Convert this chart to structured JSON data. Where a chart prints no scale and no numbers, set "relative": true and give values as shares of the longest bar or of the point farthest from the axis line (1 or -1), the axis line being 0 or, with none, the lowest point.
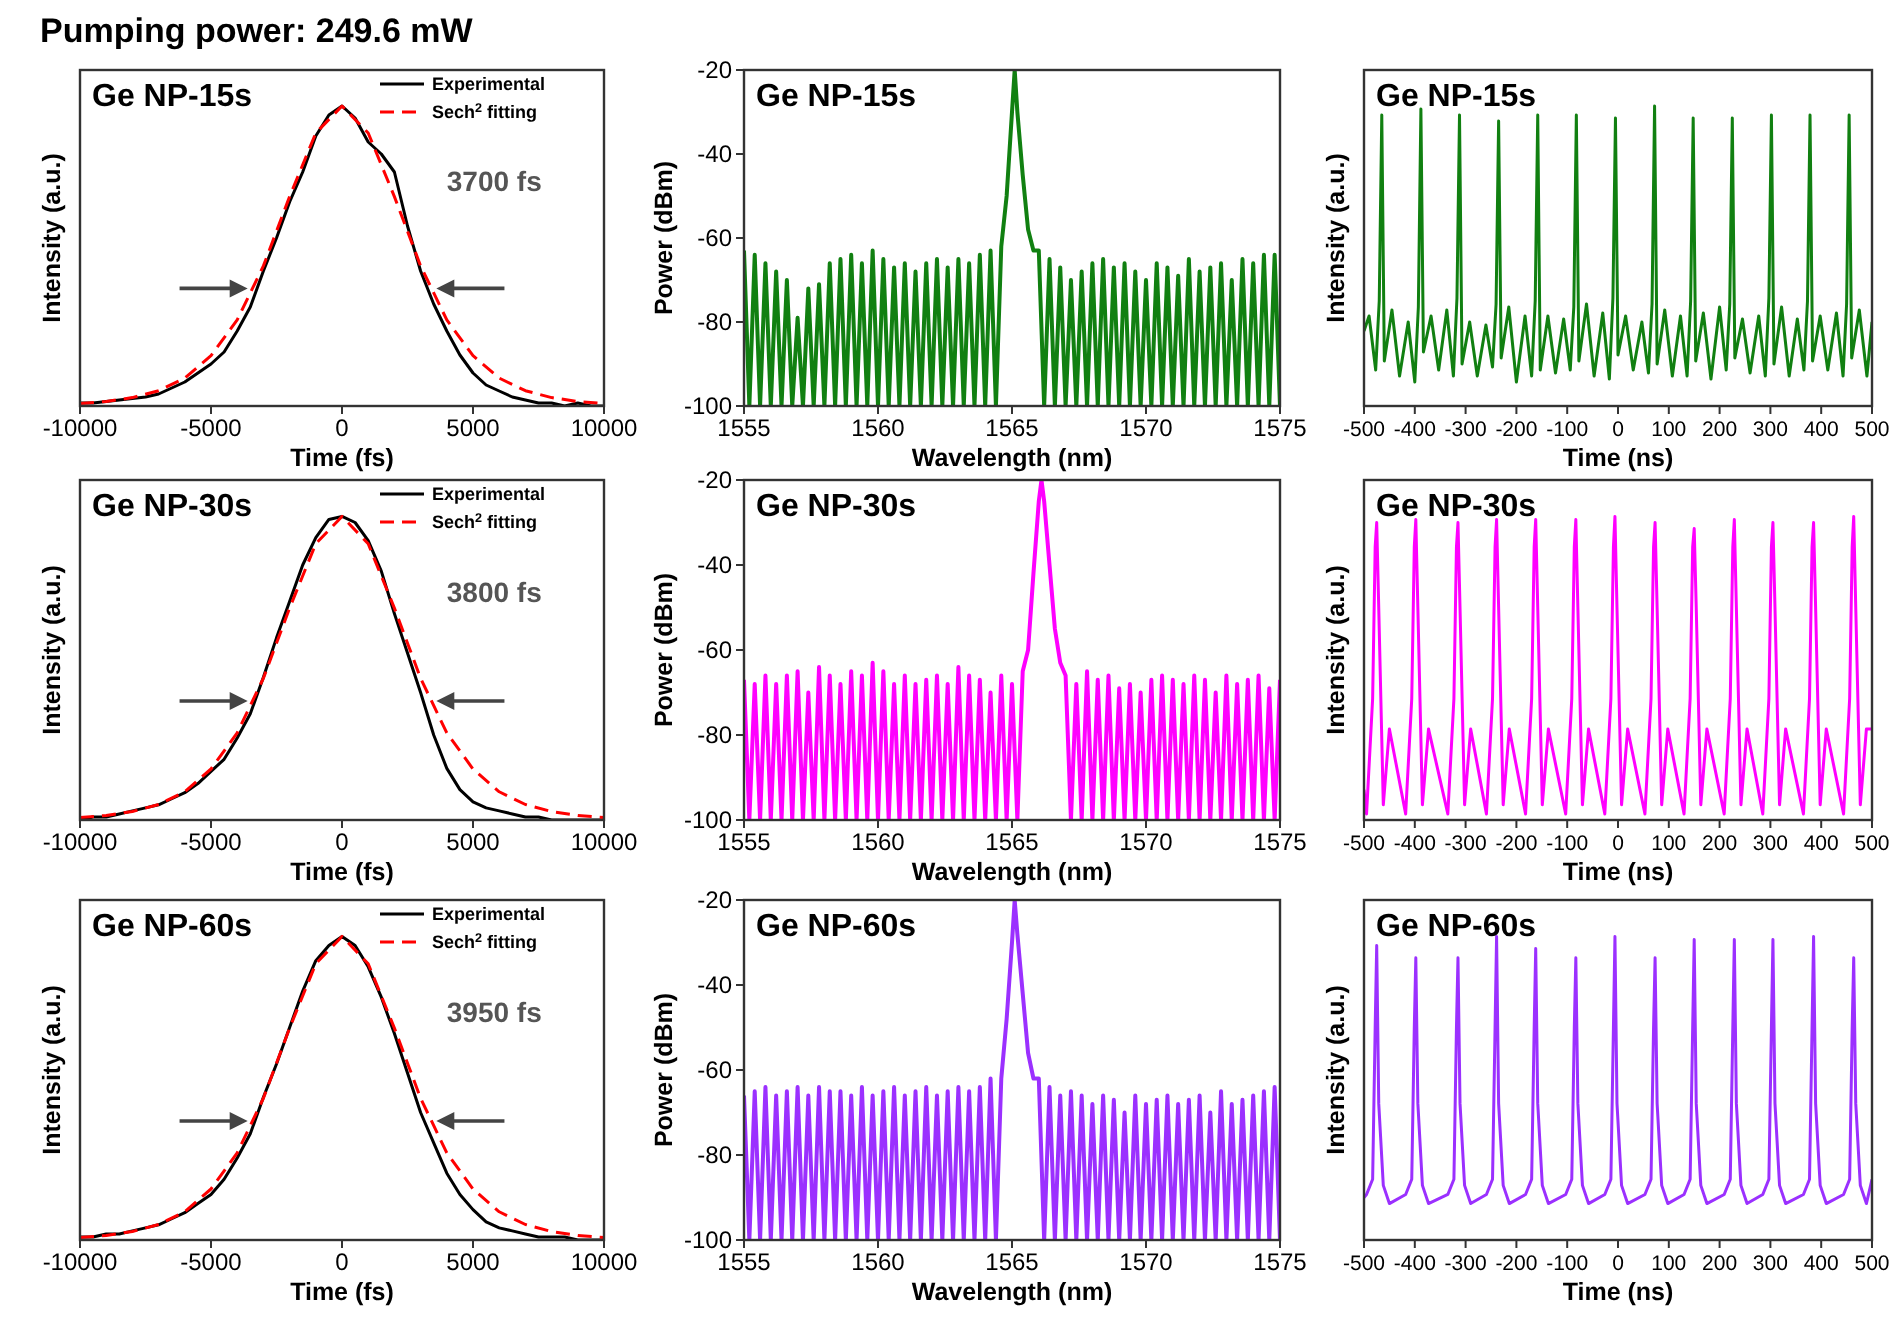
{
  "chart_data": [
    {
      "type": "line",
      "title": "Pumping power: 249.6 mW",
      "xlabel": "Time (fs)",
      "ylabel": "Intensity (a.u.)",
      "relative": true,
      "tick_labels": "x",
      "legend": "top right",
      "annotations": [
        "Ge NP-15s",
        "3700 fs"
      ],
      "xlim": [
        -10000,
        10000
      ],
      "xticks": [
        -10000,
        -5000,
        0,
        5000,
        10000
      ],
      "series": [
        {
          "name": "Experimental",
          "color": "#000000",
          "line_style": "solid",
          "x": [
            -10000,
            -9500,
            -9000,
            -8500,
            -8000,
            -7500,
            -7000,
            -6500,
            -6000,
            -5500,
            -5000,
            -4500,
            -4000,
            -3500,
            -3000,
            -2500,
            -2000,
            -1500,
            -1000,
            -500,
            0,
            500,
            1000,
            1500,
            2000,
            2500,
            3000,
            3500,
            4000,
            4500,
            5000,
            5500,
            6000,
            6500,
            7000,
            7500,
            8000,
            8500,
            9000,
            9500,
            10000
          ],
          "values": [
            0.01,
            0.01,
            0.015,
            0.02,
            0.025,
            0.03,
            0.04,
            0.06,
            0.08,
            0.11,
            0.14,
            0.18,
            0.25,
            0.33,
            0.45,
            0.56,
            0.68,
            0.78,
            0.9,
            0.97,
            1,
            0.96,
            0.88,
            0.84,
            0.78,
            0.6,
            0.45,
            0.34,
            0.25,
            0.17,
            0.11,
            0.07,
            0.05,
            0.03,
            0.02,
            0.01,
            0.01,
            0,
            0.01,
            0,
            0
          ]
        },
        {
          "name": "Sech$^{2}$ fitting",
          "color": "#ff0000",
          "line_style": "dashed",
          "x": [
            -10000,
            -9000,
            -8000,
            -7000,
            -6000,
            -5000,
            -4000,
            -3000,
            -2000,
            -1000,
            0,
            1000,
            2000,
            3000,
            4000,
            5000,
            6000,
            7000,
            8000,
            9000,
            10000
          ],
          "values": [
            0.008,
            0.015,
            0.028,
            0.051,
            0.093,
            0.168,
            0.287,
            0.467,
            0.698,
            0.91,
            1,
            0.91,
            0.698,
            0.467,
            0.287,
            0.168,
            0.093,
            0.051,
            0.028,
            0.015,
            0.008
          ]
        }
      ]
    },
    {
      "type": "line",
      "xlabel": "Wavelength (nm)",
      "ylabel": "Power (dBm)",
      "annotations": [
        "Ge NP-15s"
      ],
      "xlim": [
        1555,
        1575
      ],
      "xticks": [
        1555,
        1560,
        1565,
        1570,
        1575
      ],
      "ylim": [
        -100,
        -20
      ],
      "yticks": [
        -100,
        -80,
        -60,
        -40,
        -20
      ],
      "series": [
        {
          "color": "#118011",
          "x": [
            1555,
            1555.2,
            1555.4,
            1555.6,
            1555.8,
            1556,
            1556.2,
            1556.4,
            1556.6,
            1556.8,
            1557,
            1557.2,
            1557.4,
            1557.6,
            1557.8,
            1558,
            1558.2,
            1558.4,
            1558.6,
            1558.8,
            1559,
            1559.2,
            1559.4,
            1559.6,
            1559.8,
            1560,
            1560.2,
            1560.4,
            1560.6,
            1560.8,
            1561,
            1561.2,
            1561.4,
            1561.6,
            1561.8,
            1562,
            1562.2,
            1562.4,
            1562.6,
            1562.8,
            1563,
            1563.2,
            1563.4,
            1563.6,
            1563.8,
            1564,
            1564.2,
            1564.4,
            1564.6,
            1564.8,
            1565,
            1565.1,
            1565.2,
            1565.4,
            1565.6,
            1565.8,
            1566,
            1566.2,
            1566.4,
            1566.6,
            1566.8,
            1567,
            1567.2,
            1567.4,
            1567.6,
            1567.8,
            1568,
            1568.2,
            1568.4,
            1568.6,
            1568.8,
            1569,
            1569.2,
            1569.4,
            1569.6,
            1569.8,
            1570,
            1570.2,
            1570.4,
            1570.6,
            1570.8,
            1571,
            1571.2,
            1571.4,
            1571.6,
            1571.8,
            1572,
            1572.2,
            1572.4,
            1572.6,
            1572.8,
            1573,
            1573.2,
            1573.4,
            1573.6,
            1573.8,
            1574,
            1574.2,
            1574.4,
            1574.6,
            1574.8,
            1575
          ],
          "values": [
            -63,
            -100,
            -64,
            -100,
            -66,
            -100,
            -68,
            -100,
            -70,
            -100,
            -79,
            -100,
            -72,
            -100,
            -71,
            -100,
            -66,
            -100,
            -65,
            -100,
            -64,
            -100,
            -66,
            -100,
            -63,
            -100,
            -65,
            -100,
            -67,
            -100,
            -66,
            -100,
            -68,
            -100,
            -66,
            -100,
            -65,
            -100,
            -67,
            -100,
            -65,
            -100,
            -66,
            -100,
            -64,
            -100,
            -63,
            -100,
            -62,
            -50,
            -30,
            -20,
            -30,
            -45,
            -58,
            -63,
            -63,
            -100,
            -65,
            -100,
            -67,
            -100,
            -70,
            -100,
            -68,
            -100,
            -66,
            -100,
            -65,
            -100,
            -67,
            -100,
            -66,
            -100,
            -68,
            -100,
            -70,
            -100,
            -66,
            -100,
            -67,
            -100,
            -69,
            -100,
            -65,
            -100,
            -68,
            -100,
            -67,
            -100,
            -66,
            -100,
            -70,
            -100,
            -65,
            -100,
            -66,
            -100,
            -64,
            -100,
            -64,
            -100
          ]
        }
      ]
    },
    {
      "type": "line",
      "xlabel": "Time (ns)",
      "ylabel": "Intensity (a.u.)",
      "relative": true,
      "tick_labels": "x",
      "annotations": [
        "Ge NP-15s"
      ],
      "xlim": [
        -500,
        500
      ],
      "xticks": [
        -500,
        -400,
        -300,
        -200,
        -100,
        0,
        100,
        200,
        300,
        400,
        500
      ],
      "series": [
        {
          "color": "#118011",
          "x": [
            -500,
            -490,
            -477,
            -470,
            -465,
            -460,
            -445,
            -430,
            -413,
            -400,
            -393,
            -388,
            -383,
            -368,
            -353,
            -337,
            -324,
            -317,
            -312,
            -307,
            -292,
            -277,
            -260,
            -247,
            -240,
            -235,
            -230,
            -215,
            -200,
            -183,
            -170,
            -163,
            -158,
            -153,
            -138,
            -123,
            -107,
            -94,
            -87,
            -82,
            -77,
            -62,
            -47,
            -30,
            -17,
            -10,
            -5,
            0,
            15,
            30,
            47,
            60,
            67,
            72,
            77,
            92,
            107,
            123,
            136,
            143,
            148,
            153,
            168,
            183,
            200,
            213,
            220,
            225,
            230,
            245,
            260,
            277,
            290,
            297,
            302,
            307,
            322,
            337,
            353,
            366,
            373,
            378,
            383,
            398,
            413,
            430,
            443,
            450,
            455,
            460,
            475,
            490,
            500
          ],
          "values": [
            0.25,
            0.3,
            0.12,
            0.35,
            0.97,
            0.15,
            0.32,
            0.1,
            0.28,
            0.08,
            0.33,
            0.99,
            0.18,
            0.3,
            0.12,
            0.32,
            0.1,
            0.36,
            0.97,
            0.14,
            0.28,
            0.1,
            0.27,
            0.13,
            0.34,
            0.95,
            0.16,
            0.33,
            0.08,
            0.3,
            0.1,
            0.35,
            0.97,
            0.12,
            0.3,
            0.11,
            0.29,
            0.12,
            0.33,
            0.97,
            0.15,
            0.34,
            0.1,
            0.31,
            0.09,
            0.36,
            0.96,
            0.17,
            0.3,
            0.12,
            0.28,
            0.11,
            0.34,
            1,
            0.14,
            0.32,
            0.1,
            0.3,
            0.1,
            0.35,
            0.96,
            0.15,
            0.31,
            0.09,
            0.33,
            0.12,
            0.34,
            0.96,
            0.16,
            0.29,
            0.11,
            0.3,
            0.1,
            0.36,
            0.97,
            0.14,
            0.33,
            0.1,
            0.29,
            0.12,
            0.35,
            0.97,
            0.15,
            0.3,
            0.12,
            0.31,
            0.1,
            0.34,
            0.97,
            0.16,
            0.32,
            0.1,
            0.28
          ]
        }
      ]
    },
    {
      "type": "line",
      "xlabel": "Time (fs)",
      "ylabel": "Intensity (a.u.)",
      "relative": true,
      "tick_labels": "x",
      "legend": "top right",
      "annotations": [
        "Ge NP-30s",
        "3800 fs"
      ],
      "xlim": [
        -10000,
        10000
      ],
      "xticks": [
        -10000,
        -5000,
        0,
        5000,
        10000
      ],
      "series": [
        {
          "name": "Experimental",
          "color": "#000000",
          "line_style": "solid",
          "x": [
            -10000,
            -9500,
            -9000,
            -8500,
            -8000,
            -7500,
            -7000,
            -6500,
            -6000,
            -5500,
            -5000,
            -4500,
            -4000,
            -3500,
            -3000,
            -2500,
            -2000,
            -1500,
            -1000,
            -500,
            0,
            500,
            1000,
            1500,
            2000,
            2500,
            3000,
            3500,
            4000,
            4500,
            5000,
            5500,
            6000,
            6500,
            7000,
            7500,
            8000,
            8500,
            9000,
            9500,
            10000
          ],
          "values": [
            0,
            0.01,
            0.01,
            0.02,
            0.03,
            0.04,
            0.05,
            0.07,
            0.09,
            0.12,
            0.16,
            0.2,
            0.27,
            0.35,
            0.47,
            0.6,
            0.72,
            0.84,
            0.93,
            0.99,
            1,
            0.98,
            0.92,
            0.82,
            0.68,
            0.55,
            0.42,
            0.28,
            0.17,
            0.1,
            0.06,
            0.04,
            0.03,
            0.02,
            0.01,
            0.01,
            0,
            0,
            0,
            0,
            0
          ]
        },
        {
          "name": "Sech$^{2}$ fitting",
          "color": "#ff0000",
          "line_style": "dashed",
          "x": [
            -10000,
            -9000,
            -8000,
            -7000,
            -6000,
            -5000,
            -4000,
            -3000,
            -2000,
            -1000,
            0,
            1000,
            2000,
            3000,
            4000,
            5000,
            6000,
            7000,
            8000,
            9000,
            10000
          ],
          "values": [
            0.008,
            0.015,
            0.028,
            0.051,
            0.093,
            0.168,
            0.287,
            0.467,
            0.698,
            0.91,
            1,
            0.91,
            0.698,
            0.467,
            0.287,
            0.168,
            0.093,
            0.051,
            0.028,
            0.015,
            0.008
          ]
        }
      ]
    },
    {
      "type": "line",
      "xlabel": "Wavelength (nm)",
      "ylabel": "Power (dBm)",
      "annotations": [
        "Ge NP-30s"
      ],
      "xlim": [
        1555,
        1575
      ],
      "xticks": [
        1555,
        1560,
        1565,
        1570,
        1575
      ],
      "ylim": [
        -100,
        -20
      ],
      "yticks": [
        -100,
        -80,
        -60,
        -40,
        -20
      ],
      "series": [
        {
          "color": "#ff00ff",
          "x": [
            1555,
            1555.2,
            1555.4,
            1555.6,
            1555.8,
            1556,
            1556.2,
            1556.4,
            1556.6,
            1556.8,
            1557,
            1557.2,
            1557.4,
            1557.6,
            1557.8,
            1558,
            1558.2,
            1558.4,
            1558.6,
            1558.8,
            1559,
            1559.2,
            1559.4,
            1559.6,
            1559.8,
            1560,
            1560.2,
            1560.4,
            1560.6,
            1560.8,
            1561,
            1561.2,
            1561.4,
            1561.6,
            1561.8,
            1562,
            1562.2,
            1562.4,
            1562.6,
            1562.8,
            1563,
            1563.2,
            1563.4,
            1563.6,
            1563.8,
            1564,
            1564.2,
            1564.4,
            1564.6,
            1564.8,
            1565,
            1565.2,
            1565.4,
            1565.6,
            1565.8,
            1566,
            1566.1,
            1566.2,
            1566.4,
            1566.6,
            1566.8,
            1567,
            1567.2,
            1567.4,
            1567.6,
            1567.8,
            1568,
            1568.2,
            1568.4,
            1568.6,
            1568.8,
            1569,
            1569.2,
            1569.4,
            1569.6,
            1569.8,
            1570,
            1570.2,
            1570.4,
            1570.6,
            1570.8,
            1571,
            1571.2,
            1571.4,
            1571.6,
            1571.8,
            1572,
            1572.2,
            1572.4,
            1572.6,
            1572.8,
            1573,
            1573.2,
            1573.4,
            1573.6,
            1573.8,
            1574,
            1574.2,
            1574.4,
            1574.6,
            1574.8,
            1575
          ],
          "values": [
            -67,
            -100,
            -68,
            -100,
            -66,
            -100,
            -68,
            -100,
            -66,
            -100,
            -65,
            -100,
            -70,
            -100,
            -64,
            -100,
            -66,
            -100,
            -68,
            -100,
            -65,
            -100,
            -66,
            -100,
            -63,
            -100,
            -65,
            -100,
            -68,
            -100,
            -66,
            -100,
            -68,
            -100,
            -67,
            -100,
            -66,
            -100,
            -68,
            -100,
            -64,
            -100,
            -66,
            -100,
            -67,
            -100,
            -70,
            -100,
            -66,
            -100,
            -68,
            -100,
            -65,
            -60,
            -42,
            -25,
            -20,
            -25,
            -40,
            -55,
            -63,
            -66,
            -100,
            -68,
            -100,
            -65,
            -100,
            -67,
            -100,
            -66,
            -100,
            -69,
            -100,
            -68,
            -100,
            -70,
            -100,
            -67,
            -100,
            -66,
            -100,
            -67,
            -100,
            -68,
            -100,
            -66,
            -100,
            -67,
            -100,
            -70,
            -100,
            -66,
            -100,
            -68,
            -100,
            -67,
            -100,
            -66,
            -100,
            -69,
            -100,
            -67
          ]
        }
      ]
    },
    {
      "type": "line",
      "xlabel": "Time (ns)",
      "ylabel": "Intensity (a.u.)",
      "relative": true,
      "tick_labels": "x",
      "annotations": [
        "Ge NP-30s"
      ],
      "xlim": [
        -500,
        500
      ],
      "xticks": [
        -500,
        -400,
        -300,
        -200,
        -100,
        0,
        100,
        200,
        300,
        400,
        500
      ],
      "series": [
        {
          "color": "#ff00ff",
          "x": [
            -500,
            -495,
            -483,
            -478,
            -475,
            -471,
            -462,
            -450,
            -418,
            -406,
            -401,
            -398,
            -394,
            -385,
            -373,
            -335,
            -323,
            -318,
            -315,
            -311,
            -302,
            -290,
            -259,
            -247,
            -242,
            -239,
            -235,
            -226,
            -214,
            -182,
            -170,
            -165,
            -162,
            -158,
            -149,
            -137,
            -103,
            -91,
            -86,
            -83,
            -79,
            -70,
            -58,
            -26,
            -14,
            -9,
            -6,
            -2,
            7,
            19,
            53,
            65,
            70,
            73,
            77,
            86,
            98,
            130,
            142,
            147,
            150,
            154,
            163,
            175,
            209,
            221,
            226,
            229,
            233,
            242,
            254,
            285,
            297,
            302,
            305,
            309,
            318,
            330,
            365,
            377,
            382,
            385,
            389,
            398,
            410,
            444,
            456,
            461,
            464,
            468,
            477,
            489,
            500
          ],
          "values": [
            0.1,
            0.02,
            0.4,
            0.9,
            0.98,
            0.7,
            0.05,
            0.3,
            0.02,
            0.4,
            0.9,
            0.99,
            0.7,
            0.05,
            0.3,
            0.02,
            0.4,
            0.9,
            0.98,
            0.7,
            0.05,
            0.3,
            0.02,
            0.4,
            0.9,
            0.99,
            0.7,
            0.05,
            0.3,
            0.02,
            0.4,
            0.9,
            0.99,
            0.7,
            0.05,
            0.3,
            0.02,
            0.4,
            0.9,
            0.99,
            0.7,
            0.05,
            0.3,
            0.02,
            0.4,
            0.9,
            1,
            0.7,
            0.05,
            0.3,
            0.02,
            0.4,
            0.9,
            0.98,
            0.7,
            0.05,
            0.3,
            0.02,
            0.4,
            0.9,
            0.96,
            0.7,
            0.05,
            0.3,
            0.02,
            0.4,
            0.9,
            0.99,
            0.7,
            0.05,
            0.3,
            0.02,
            0.4,
            0.9,
            0.98,
            0.7,
            0.05,
            0.3,
            0.02,
            0.4,
            0.9,
            0.98,
            0.7,
            0.05,
            0.3,
            0.02,
            0.4,
            0.9,
            1,
            0.7,
            0.05,
            0.3,
            0.3
          ]
        }
      ]
    },
    {
      "type": "line",
      "xlabel": "Time (fs)",
      "ylabel": "Intensity (a.u.)",
      "relative": true,
      "tick_labels": "x",
      "legend": "top right",
      "annotations": [
        "Ge NP-60s",
        "3950 fs"
      ],
      "xlim": [
        -10000,
        10000
      ],
      "xticks": [
        -10000,
        -5000,
        0,
        5000,
        10000
      ],
      "series": [
        {
          "name": "Experimental",
          "color": "#000000",
          "line_style": "solid",
          "x": [
            -10000,
            -9500,
            -9000,
            -8500,
            -8000,
            -7500,
            -7000,
            -6500,
            -6000,
            -5500,
            -5000,
            -4500,
            -4000,
            -3500,
            -3000,
            -2500,
            -2000,
            -1500,
            -1000,
            -500,
            0,
            500,
            1000,
            1500,
            2000,
            2500,
            3000,
            3500,
            4000,
            4500,
            5000,
            5500,
            6000,
            6500,
            7000,
            7500,
            8000,
            8500,
            9000,
            9500,
            10000
          ],
          "values": [
            0.01,
            0.01,
            0.02,
            0.02,
            0.03,
            0.04,
            0.05,
            0.07,
            0.09,
            0.12,
            0.15,
            0.2,
            0.27,
            0.35,
            0.47,
            0.58,
            0.7,
            0.82,
            0.92,
            0.97,
            1,
            0.97,
            0.9,
            0.8,
            0.68,
            0.55,
            0.42,
            0.32,
            0.22,
            0.15,
            0.1,
            0.06,
            0.04,
            0.03,
            0.02,
            0.01,
            0.01,
            0.01,
            0,
            0,
            0
          ]
        },
        {
          "name": "Sech$^{2}$ fitting",
          "color": "#ff0000",
          "line_style": "dashed",
          "x": [
            -10000,
            -9000,
            -8000,
            -7000,
            -6000,
            -5000,
            -4000,
            -3000,
            -2000,
            -1000,
            0,
            1000,
            2000,
            3000,
            4000,
            5000,
            6000,
            7000,
            8000,
            9000,
            10000
          ],
          "values": [
            0.008,
            0.015,
            0.028,
            0.051,
            0.093,
            0.168,
            0.287,
            0.467,
            0.698,
            0.91,
            1,
            0.91,
            0.698,
            0.467,
            0.287,
            0.168,
            0.093,
            0.051,
            0.028,
            0.015,
            0.008
          ]
        }
      ]
    },
    {
      "type": "line",
      "xlabel": "Wavelength (nm)",
      "ylabel": "Power (dBm)",
      "annotations": [
        "Ge NP-60s"
      ],
      "xlim": [
        1555,
        1575
      ],
      "xticks": [
        1555,
        1560,
        1565,
        1570,
        1575
      ],
      "ylim": [
        -100,
        -20
      ],
      "yticks": [
        -100,
        -80,
        -60,
        -40,
        -20
      ],
      "series": [
        {
          "color": "#9b30ff",
          "x": [
            1555,
            1555.2,
            1555.4,
            1555.6,
            1555.8,
            1556,
            1556.2,
            1556.4,
            1556.6,
            1556.8,
            1557,
            1557.2,
            1557.4,
            1557.6,
            1557.8,
            1558,
            1558.2,
            1558.4,
            1558.6,
            1558.8,
            1559,
            1559.2,
            1559.4,
            1559.6,
            1559.8,
            1560,
            1560.2,
            1560.4,
            1560.6,
            1560.8,
            1561,
            1561.2,
            1561.4,
            1561.6,
            1561.8,
            1562,
            1562.2,
            1562.4,
            1562.6,
            1562.8,
            1563,
            1563.2,
            1563.4,
            1563.6,
            1563.8,
            1564,
            1564.2,
            1564.4,
            1564.6,
            1564.8,
            1565,
            1565.1,
            1565.2,
            1565.4,
            1565.6,
            1565.8,
            1566,
            1566.2,
            1566.4,
            1566.6,
            1566.8,
            1567,
            1567.2,
            1567.4,
            1567.6,
            1567.8,
            1568,
            1568.2,
            1568.4,
            1568.6,
            1568.8,
            1569,
            1569.2,
            1569.4,
            1569.6,
            1569.8,
            1570,
            1570.2,
            1570.4,
            1570.6,
            1570.8,
            1571,
            1571.2,
            1571.4,
            1571.6,
            1571.8,
            1572,
            1572.2,
            1572.4,
            1572.6,
            1572.8,
            1573,
            1573.2,
            1573.4,
            1573.6,
            1573.8,
            1574,
            1574.2,
            1574.4,
            1574.6,
            1574.8,
            1575
          ],
          "values": [
            -66,
            -100,
            -65,
            -100,
            -64,
            -100,
            -66,
            -100,
            -65,
            -100,
            -64,
            -100,
            -66,
            -100,
            -64,
            -100,
            -65,
            -100,
            -65,
            -100,
            -66,
            -100,
            -64,
            -100,
            -66,
            -100,
            -65,
            -100,
            -64,
            -100,
            -66,
            -100,
            -65,
            -100,
            -64,
            -100,
            -66,
            -100,
            -65,
            -100,
            -64,
            -100,
            -65,
            -100,
            -64,
            -100,
            -62,
            -100,
            -62,
            -48,
            -30,
            -20,
            -28,
            -42,
            -56,
            -62,
            -62,
            -100,
            -64,
            -100,
            -66,
            -100,
            -65,
            -100,
            -66,
            -100,
            -68,
            -100,
            -66,
            -100,
            -67,
            -100,
            -70,
            -100,
            -66,
            -100,
            -68,
            -100,
            -67,
            -100,
            -66,
            -100,
            -68,
            -100,
            -67,
            -100,
            -66,
            -100,
            -70,
            -100,
            -65,
            -100,
            -68,
            -100,
            -67,
            -100,
            -66,
            -100,
            -65,
            -100,
            -64,
            -100
          ]
        }
      ]
    },
    {
      "type": "line",
      "xlabel": "Time (ns)",
      "ylabel": "Intensity (a.u.)",
      "relative": true,
      "tick_labels": "x",
      "annotations": [
        "Ge NP-60s"
      ],
      "xlim": [
        -500,
        500
      ],
      "xticks": [
        -500,
        -400,
        -300,
        -200,
        -100,
        0,
        100,
        200,
        300,
        400,
        500
      ],
      "series": [
        {
          "color": "#9b30ff",
          "x": [
            -500,
            -495,
            -483,
            -478,
            -475,
            -471,
            -462,
            -450,
            -418,
            -406,
            -401,
            -398,
            -394,
            -385,
            -373,
            -335,
            -323,
            -318,
            -315,
            -311,
            -302,
            -290,
            -259,
            -247,
            -242,
            -239,
            -235,
            -226,
            -214,
            -182,
            -170,
            -165,
            -162,
            -158,
            -149,
            -137,
            -103,
            -91,
            -86,
            -83,
            -79,
            -70,
            -58,
            -26,
            -14,
            -9,
            -6,
            -2,
            7,
            19,
            53,
            65,
            70,
            73,
            77,
            86,
            98,
            130,
            142,
            147,
            150,
            154,
            163,
            175,
            209,
            221,
            226,
            229,
            233,
            242,
            254,
            285,
            297,
            302,
            305,
            309,
            318,
            330,
            365,
            377,
            382,
            385,
            389,
            398,
            410,
            444,
            456,
            461,
            464,
            468,
            477,
            489,
            500
          ],
          "values": [
            0.14,
            0.15,
            0.2,
            0.7,
            0.97,
            0.45,
            0.18,
            0.12,
            0.15,
            0.2,
            0.7,
            0.93,
            0.45,
            0.18,
            0.12,
            0.15,
            0.2,
            0.7,
            0.93,
            0.45,
            0.18,
            0.12,
            0.15,
            0.2,
            0.7,
            1,
            0.45,
            0.18,
            0.12,
            0.15,
            0.2,
            0.7,
            0.96,
            0.45,
            0.18,
            0.12,
            0.15,
            0.2,
            0.7,
            0.93,
            0.45,
            0.18,
            0.12,
            0.15,
            0.2,
            0.7,
            1,
            0.45,
            0.18,
            0.12,
            0.15,
            0.2,
            0.7,
            0.93,
            0.45,
            0.18,
            0.12,
            0.15,
            0.2,
            0.7,
            0.99,
            0.45,
            0.18,
            0.12,
            0.15,
            0.2,
            0.7,
            0.99,
            0.45,
            0.18,
            0.12,
            0.15,
            0.2,
            0.7,
            0.99,
            0.45,
            0.18,
            0.12,
            0.15,
            0.2,
            0.7,
            1,
            0.45,
            0.18,
            0.12,
            0.15,
            0.2,
            0.7,
            0.93,
            0.45,
            0.18,
            0.12,
            0.2
          ]
        }
      ]
    }
  ]
}
